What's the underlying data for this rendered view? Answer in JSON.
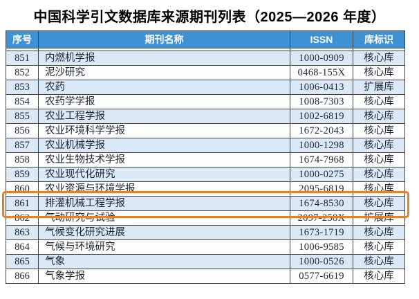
{
  "page": {
    "title": "中国科学引文数据库来源期刊列表（2025—2026 年度）"
  },
  "table": {
    "headers": {
      "no": "序号",
      "name": "期刊名称",
      "issn": "ISSN",
      "db": "库标识"
    },
    "rows": [
      {
        "no": "851",
        "name": "内燃机学报",
        "issn": "1000-0909",
        "db": "核心库"
      },
      {
        "no": "852",
        "name": "泥沙研究",
        "issn": "0468-155X",
        "db": "核心库"
      },
      {
        "no": "853",
        "name": "农药",
        "issn": "1006-0413",
        "db": "扩展库"
      },
      {
        "no": "854",
        "name": "农药学学报",
        "issn": "1008-7303",
        "db": "核心库"
      },
      {
        "no": "855",
        "name": "农业工程学报",
        "issn": "1002-6819",
        "db": "核心库"
      },
      {
        "no": "856",
        "name": "农业环境科学学报",
        "issn": "1672-2043",
        "db": "核心库"
      },
      {
        "no": "857",
        "name": "农业机械学报",
        "issn": "1000-1298",
        "db": "核心库"
      },
      {
        "no": "858",
        "name": "农业生物技术学报",
        "issn": "1674-7968",
        "db": "核心库"
      },
      {
        "no": "859",
        "name": "农业现代化研究",
        "issn": "1000-0275",
        "db": "核心库"
      },
      {
        "no": "860",
        "name": "农业资源与环境学报",
        "issn": "2095-6819",
        "db": "核心库"
      },
      {
        "no": "861",
        "name": "排灌机械工程学报",
        "issn": "1674-8530",
        "db": "核心库"
      },
      {
        "no": "862",
        "name": "气动研究与试验",
        "issn": "2097-258X",
        "db": "扩展库"
      },
      {
        "no": "863",
        "name": "气候变化研究进展",
        "issn": "1673-1719",
        "db": "核心库"
      },
      {
        "no": "864",
        "name": "气候与环境研究",
        "issn": "1006-9585",
        "db": "核心库"
      },
      {
        "no": "865",
        "name": "气象",
        "issn": "1000-0526",
        "db": "核心库"
      },
      {
        "no": "866",
        "name": "气象学报",
        "issn": "0577-6619",
        "db": "核心库"
      }
    ]
  },
  "annotation": {
    "highlighted_row_no": "861",
    "highlight_color": "#E2802B"
  },
  "colors": {
    "header_bg": "#3E91D2",
    "header_text": "#FFFFFF",
    "row_alt_bg": "#DBE9F7",
    "row_bg": "#FEFEFE",
    "border": "#3F3F3F"
  }
}
